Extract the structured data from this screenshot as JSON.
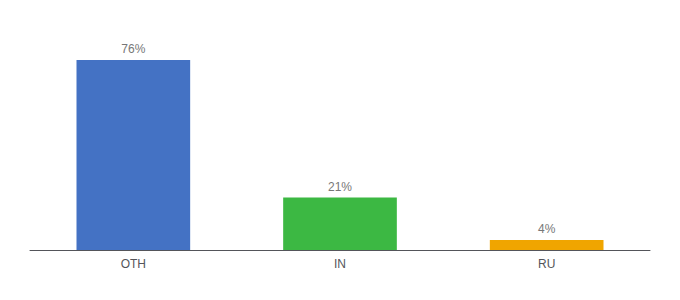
{
  "chart_data": {
    "type": "bar",
    "categories": [
      "OTH",
      "IN",
      "RU"
    ],
    "values": [
      76,
      21,
      4
    ],
    "value_labels": [
      "76%",
      "21%",
      "4%"
    ],
    "colors": [
      "#4472c4",
      "#3cb843",
      "#f0a500"
    ],
    "ylim": [
      0,
      88
    ],
    "data_labels": true,
    "tick_labels": "x",
    "grid": false
  }
}
